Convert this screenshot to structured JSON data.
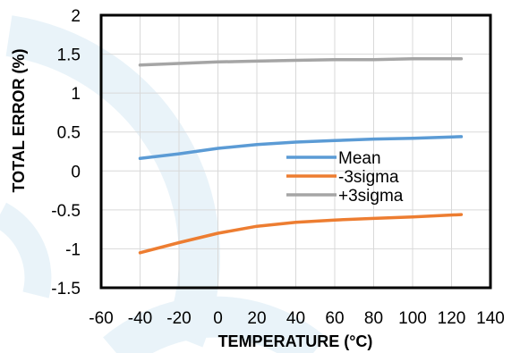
{
  "chart_data": {
    "type": "line",
    "xlabel": "TEMPERATURE (°C)",
    "ylabel": "TOTAL ERROR (%)",
    "xlim": [
      -60,
      140
    ],
    "ylim": [
      -1.5,
      2
    ],
    "xticks": [
      "-60",
      "-40",
      "-20",
      "0",
      "20",
      "40",
      "60",
      "80",
      "100",
      "120",
      "140"
    ],
    "yticks": [
      "2",
      "1.5",
      "1",
      "0.5",
      "0",
      "-0.5",
      "-1",
      "-1.5"
    ],
    "grid": true,
    "legend_position": "center-right",
    "series": [
      {
        "name": "Mean",
        "color": "#5B9BD5",
        "x": [
          -40,
          -20,
          0,
          20,
          40,
          60,
          80,
          100,
          125
        ],
        "y": [
          0.16,
          0.22,
          0.29,
          0.34,
          0.37,
          0.39,
          0.41,
          0.42,
          0.44
        ]
      },
      {
        "name": "-3sigma",
        "color": "#ED7D31",
        "x": [
          -40,
          -20,
          0,
          20,
          40,
          60,
          80,
          100,
          125
        ],
        "y": [
          -1.05,
          -0.92,
          -0.8,
          -0.71,
          -0.66,
          -0.63,
          -0.61,
          -0.59,
          -0.56
        ]
      },
      {
        "name": "+3sigma",
        "color": "#A5A5A5",
        "x": [
          -40,
          -20,
          0,
          20,
          40,
          60,
          80,
          100,
          125
        ],
        "y": [
          1.36,
          1.38,
          1.4,
          1.41,
          1.42,
          1.43,
          1.43,
          1.44,
          1.44
        ]
      }
    ]
  }
}
